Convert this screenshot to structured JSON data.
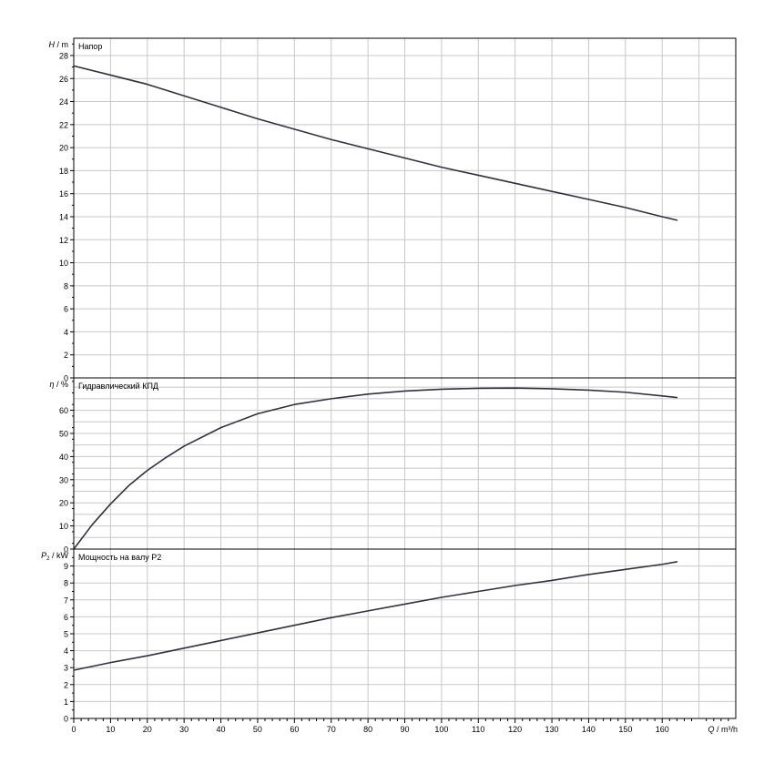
{
  "chart_data": {
    "type": "line",
    "x_axis": {
      "label_var": "Q",
      "label_unit": "/ m³/h",
      "range": [
        0,
        180
      ],
      "ticks": [
        0,
        10,
        20,
        30,
        40,
        50,
        60,
        70,
        80,
        90,
        100,
        110,
        120,
        130,
        140,
        150,
        160
      ]
    },
    "panels": [
      {
        "id": "head",
        "title": "Напор",
        "ylabel_var": "H",
        "ylabel_sub": "",
        "ylabel_unit": "/ m",
        "ylim": [
          0,
          29.5
        ],
        "ticks": [
          0,
          2,
          4,
          6,
          8,
          10,
          12,
          14,
          16,
          18,
          20,
          22,
          24,
          26,
          28
        ],
        "grid_step": 2,
        "series": [
          {
            "x": [
              0,
              10,
              20,
              30,
              40,
              50,
              60,
              70,
              80,
              90,
              100,
              110,
              120,
              130,
              140,
              150,
              160,
              164
            ],
            "y": [
              27.1,
              26.3,
              25.5,
              24.5,
              23.5,
              22.5,
              21.6,
              20.7,
              19.9,
              19.1,
              18.3,
              17.6,
              16.9,
              16.2,
              15.5,
              14.8,
              14.0,
              13.7
            ]
          }
        ]
      },
      {
        "id": "efficiency",
        "title": "Гидравлический КПД",
        "ylabel_var": "η",
        "ylabel_sub": "",
        "ylabel_unit": "/ %",
        "ylim": [
          0,
          74
        ],
        "ticks": [
          0,
          10,
          20,
          30,
          40,
          50,
          60
        ],
        "grid_step": 5,
        "series": [
          {
            "x": [
              0,
              5,
              10,
              15,
              20,
              25,
              30,
              40,
              50,
              60,
              70,
              80,
              90,
              100,
              110,
              120,
              130,
              140,
              150,
              160,
              164
            ],
            "y": [
              0,
              10.5,
              19.5,
              27.5,
              34,
              39.5,
              44.5,
              52.5,
              58.5,
              62.5,
              65,
              67,
              68.3,
              69.1,
              69.5,
              69.6,
              69.3,
              68.7,
              67.8,
              66.2,
              65.5
            ]
          }
        ]
      },
      {
        "id": "power",
        "title": "Мощность на валу P2",
        "ylabel_var": "P",
        "ylabel_sub": "2",
        "ylabel_unit": "/ kW",
        "ylim": [
          0,
          10
        ],
        "ticks": [
          0,
          1,
          2,
          3,
          4,
          5,
          6,
          7,
          8,
          9
        ],
        "grid_step": 1,
        "series": [
          {
            "x": [
              0,
              10,
              20,
              30,
              40,
              50,
              60,
              70,
              80,
              90,
              100,
              110,
              120,
              130,
              140,
              150,
              160,
              164
            ],
            "y": [
              2.85,
              3.3,
              3.7,
              4.15,
              4.6,
              5.05,
              5.5,
              5.95,
              6.35,
              6.75,
              7.15,
              7.5,
              7.85,
              8.15,
              8.5,
              8.8,
              9.1,
              9.25
            ]
          }
        ]
      }
    ],
    "grid": true,
    "colors": {
      "line": "#2e3140",
      "grid": "#c8c8c8",
      "frame": "#000000"
    }
  }
}
